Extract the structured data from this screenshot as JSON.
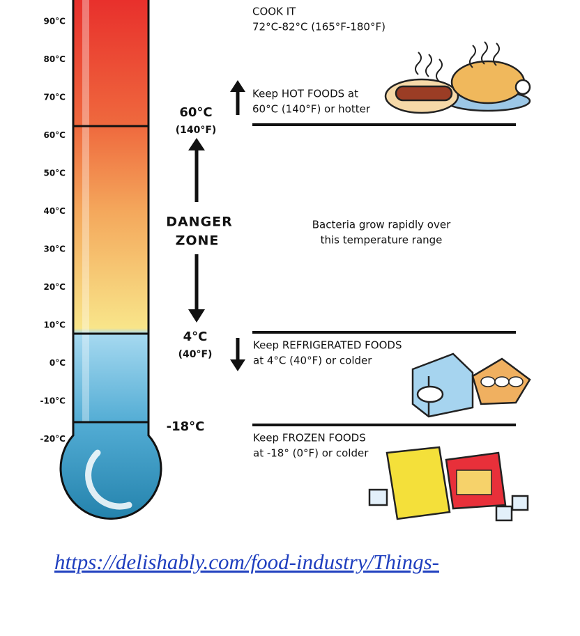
{
  "scale": {
    "labels": [
      "90°C",
      "80°C",
      "70°C",
      "60°C",
      "50°C",
      "40°C",
      "30°C",
      "20°C",
      "10°C",
      "0°C",
      "-10°C",
      "-20°C"
    ]
  },
  "markers": {
    "hot": {
      "temp": "60°C",
      "temp_f": "(140°F)"
    },
    "cold": {
      "temp": "4°C",
      "temp_f": "(40°F)"
    },
    "frozen": {
      "temp": "-18°C"
    }
  },
  "danger_zone": {
    "label_line1": "DANGER",
    "label_line2": "ZONE",
    "note_line1": "Bacteria grow rapidly over",
    "note_line2": "this temperature range"
  },
  "sections": [
    {
      "line1": "COOK IT",
      "line2": "72°C-82°C (165°F-180°F)"
    },
    {
      "line1": "Keep HOT FOODS at",
      "line2": "60°C (140°F) or hotter"
    },
    {
      "line1": "Keep REFRIGERATED FOODS",
      "line2": "at 4°C (40°F) or colder"
    },
    {
      "line1": "Keep FROZEN FOODS",
      "line2": "at -18° (0°F) or colder"
    }
  ],
  "link": "https://delishably.com/food-industry/Things-"
}
